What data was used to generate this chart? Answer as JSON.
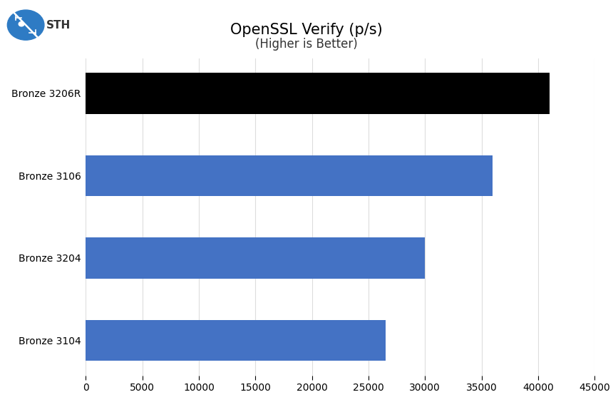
{
  "title": "OpenSSL Verify (p/s)",
  "subtitle": "(Higher is Better)",
  "categories": [
    "Bronze 3206R",
    "Bronze 3106",
    "Bronze 3204",
    "Bronze 3104"
  ],
  "values": [
    41000,
    36000,
    30000,
    26500
  ],
  "bar_colors": [
    "#000000",
    "#4472c4",
    "#4472c4",
    "#4472c4"
  ],
  "xlim": [
    0,
    45000
  ],
  "xticks": [
    0,
    5000,
    10000,
    15000,
    20000,
    25000,
    30000,
    35000,
    40000,
    45000
  ],
  "xtick_labels": [
    "0",
    "5000",
    "10000",
    "15000",
    "20000",
    "25000",
    "30000",
    "35000",
    "40000",
    "45000"
  ],
  "background_color": "#ffffff",
  "title_fontsize": 15,
  "subtitle_fontsize": 12,
  "tick_fontsize": 10,
  "label_fontsize": 10,
  "bar_height": 0.5,
  "grid_color": "#dddddd",
  "grid_linewidth": 0.8
}
